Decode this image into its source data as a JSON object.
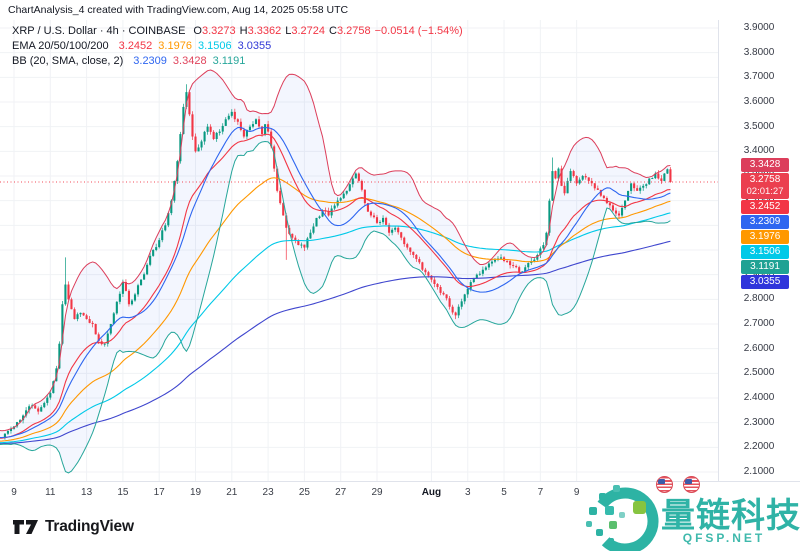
{
  "header": {
    "title": "ChartAnalysis_4 created with TradingView.com, Aug 14, 2025 05:58 UTC"
  },
  "legend": {
    "symbol": "XRP / U.S. Dollar · 4h · COINBASE",
    "ohlc": [
      {
        "k": "O",
        "v": "3.3273"
      },
      {
        "k": "H",
        "v": "3.3362"
      },
      {
        "k": "L",
        "v": "3.2724"
      },
      {
        "k": "C",
        "v": "3.2758"
      }
    ],
    "ohlc_color": "#f23645",
    "change": "−0.0514 (−1.54%)",
    "ema": {
      "label": "EMA 20/50/100/200",
      "values": [
        {
          "v": "3.2452",
          "color": "#f23645"
        },
        {
          "v": "3.1976",
          "color": "#ff9800"
        },
        {
          "v": "3.1506",
          "color": "#00c9e8"
        },
        {
          "v": "3.0355",
          "color": "#3038d6"
        }
      ]
    },
    "bb": {
      "label": "BB (20, SMA, close, 2)",
      "values": [
        {
          "v": "3.2309",
          "color": "#2e66f0"
        },
        {
          "v": "3.3428",
          "color": "#e0445c"
        },
        {
          "v": "3.1191",
          "color": "#26a69a"
        }
      ]
    }
  },
  "y_axis": {
    "labels": [
      "3.9000",
      "3.8000",
      "3.7000",
      "3.6000",
      "3.5000",
      "3.4000",
      "3.3000",
      "3.2000",
      "3.1000",
      "3.0000",
      "2.9000",
      "2.8000",
      "2.7000",
      "2.6000",
      "2.5000",
      "2.4000",
      "2.3000",
      "2.2000",
      "2.1000"
    ]
  },
  "x_axis": {
    "ticks": [
      {
        "label": "9",
        "d": 0
      },
      {
        "label": "11",
        "d": 2
      },
      {
        "label": "13",
        "d": 4
      },
      {
        "label": "15",
        "d": 6
      },
      {
        "label": "17",
        "d": 8
      },
      {
        "label": "19",
        "d": 10
      },
      {
        "label": "21",
        "d": 12
      },
      {
        "label": "23",
        "d": 14
      },
      {
        "label": "25",
        "d": 16
      },
      {
        "label": "27",
        "d": 18
      },
      {
        "label": "29",
        "d": 20
      },
      {
        "label": "Aug",
        "d": 23,
        "bold": true
      },
      {
        "label": "3",
        "d": 25
      },
      {
        "label": "5",
        "d": 27
      },
      {
        "label": "7",
        "d": 29
      },
      {
        "label": "9",
        "d": 31
      }
    ]
  },
  "badges": [
    {
      "name": "bb-upper-badge",
      "label": "3.3428",
      "price": 3.3428,
      "color": "#dc3e5b"
    },
    {
      "name": "last-price-badge",
      "label": "3.2758",
      "price": 3.2758,
      "color": "#eb3f4f",
      "sub": "02:01:27"
    },
    {
      "name": "ema20-badge",
      "label": "3.2452",
      "price": 3.2452,
      "color": "#f23645"
    },
    {
      "name": "bb-basis-badge",
      "label": "3.2309",
      "price": 3.2309,
      "color": "#2e66f0"
    },
    {
      "name": "ema50-badge",
      "label": "3.1976",
      "price": 3.1976,
      "color": "#ff9800"
    },
    {
      "name": "ema100-badge",
      "label": "3.1506",
      "price": 3.1506,
      "color": "#00c9e8"
    },
    {
      "name": "bb-lower-badge",
      "label": "3.1191",
      "price": 3.1191,
      "color": "#1fa294"
    },
    {
      "name": "ema200-badge",
      "label": "3.0355",
      "price": 3.0355,
      "color": "#2f35db"
    }
  ],
  "chart_data": {
    "type": "candlestick",
    "symbol": "XRP/USD",
    "interval": "4h",
    "ylim": [
      2.1,
      3.9
    ],
    "grid": true,
    "last_candle": {
      "open": 3.3273,
      "high": 3.3362,
      "low": 3.2724,
      "close": 3.2758,
      "change": -0.0514,
      "change_pct": -1.54
    },
    "price_line": {
      "price": 3.2758,
      "color": "#f23645",
      "countdown": "02:01:27"
    },
    "candle_colors": {
      "up": "#089981",
      "down": "#f23645"
    },
    "warmup_keypoints": [
      [
        -20,
        2.21
      ],
      [
        -16,
        2.25
      ],
      [
        -12,
        2.22
      ],
      [
        -8,
        2.26
      ],
      [
        -4,
        2.24
      ],
      [
        -1,
        2.275
      ]
    ],
    "close_keypoints": [
      [
        0,
        2.285
      ],
      [
        2,
        2.31
      ],
      [
        4,
        2.35
      ],
      [
        6,
        2.37
      ],
      [
        8,
        2.345
      ],
      [
        10,
        2.38
      ],
      [
        12,
        2.42
      ],
      [
        14,
        2.52
      ],
      [
        15,
        2.62
      ],
      [
        16,
        2.78
      ],
      [
        17,
        2.86
      ],
      [
        18,
        2.8
      ],
      [
        19,
        2.76
      ],
      [
        20,
        2.72
      ],
      [
        22,
        2.745
      ],
      [
        24,
        2.72
      ],
      [
        26,
        2.7
      ],
      [
        28,
        2.63
      ],
      [
        30,
        2.62
      ],
      [
        32,
        2.7
      ],
      [
        34,
        2.79
      ],
      [
        36,
        2.87
      ],
      [
        38,
        2.78
      ],
      [
        40,
        2.82
      ],
      [
        42,
        2.88
      ],
      [
        44,
        2.94
      ],
      [
        46,
        3.0
      ],
      [
        48,
        3.04
      ],
      [
        50,
        3.1
      ],
      [
        52,
        3.2
      ],
      [
        54,
        3.36
      ],
      [
        55,
        3.47
      ],
      [
        56,
        3.58
      ],
      [
        57,
        3.64
      ],
      [
        58,
        3.55
      ],
      [
        59,
        3.46
      ],
      [
        60,
        3.4
      ],
      [
        62,
        3.44
      ],
      [
        64,
        3.5
      ],
      [
        66,
        3.45
      ],
      [
        68,
        3.48
      ],
      [
        70,
        3.53
      ],
      [
        72,
        3.56
      ],
      [
        74,
        3.52
      ],
      [
        76,
        3.46
      ],
      [
        78,
        3.5
      ],
      [
        80,
        3.53
      ],
      [
        82,
        3.47
      ],
      [
        83,
        3.51
      ],
      [
        84,
        3.48
      ],
      [
        85,
        3.42
      ],
      [
        86,
        3.33
      ],
      [
        87,
        3.24
      ],
      [
        88,
        3.19
      ],
      [
        89,
        3.14
      ],
      [
        90,
        3.09
      ],
      [
        92,
        3.05
      ],
      [
        94,
        3.02
      ],
      [
        96,
        3.01
      ],
      [
        98,
        3.07
      ],
      [
        100,
        3.13
      ],
      [
        102,
        3.16
      ],
      [
        104,
        3.14
      ],
      [
        106,
        3.18
      ],
      [
        108,
        3.21
      ],
      [
        110,
        3.24
      ],
      [
        112,
        3.29
      ],
      [
        113,
        3.31
      ],
      [
        114,
        3.28
      ],
      [
        116,
        3.19
      ],
      [
        118,
        3.14
      ],
      [
        120,
        3.11
      ],
      [
        122,
        3.13
      ],
      [
        124,
        3.07
      ],
      [
        126,
        3.09
      ],
      [
        128,
        3.05
      ],
      [
        130,
        3.01
      ],
      [
        132,
        2.98
      ],
      [
        134,
        2.95
      ],
      [
        136,
        2.91
      ],
      [
        138,
        2.88
      ],
      [
        140,
        2.85
      ],
      [
        142,
        2.82
      ],
      [
        144,
        2.77
      ],
      [
        146,
        2.735
      ],
      [
        147,
        2.77
      ],
      [
        149,
        2.82
      ],
      [
        151,
        2.87
      ],
      [
        153,
        2.9
      ],
      [
        155,
        2.92
      ],
      [
        157,
        2.945
      ],
      [
        159,
        2.96
      ],
      [
        161,
        2.97
      ],
      [
        163,
        2.955
      ],
      [
        165,
        2.935
      ],
      [
        167,
        2.91
      ],
      [
        169,
        2.93
      ],
      [
        171,
        2.955
      ],
      [
        173,
        2.98
      ],
      [
        175,
        3.02
      ],
      [
        176,
        3.07
      ],
      [
        177,
        3.2
      ],
      [
        178,
        3.32
      ],
      [
        179,
        3.29
      ],
      [
        180,
        3.33
      ],
      [
        181,
        3.26
      ],
      [
        182,
        3.23
      ],
      [
        183,
        3.28
      ],
      [
        184,
        3.32
      ],
      [
        185,
        3.3
      ],
      [
        186,
        3.27
      ],
      [
        188,
        3.3
      ],
      [
        190,
        3.28
      ],
      [
        192,
        3.25
      ],
      [
        194,
        3.22
      ],
      [
        196,
        3.19
      ],
      [
        198,
        3.16
      ],
      [
        200,
        3.14
      ],
      [
        202,
        3.2
      ],
      [
        204,
        3.27
      ],
      [
        206,
        3.24
      ],
      [
        208,
        3.26
      ],
      [
        210,
        3.29
      ],
      [
        212,
        3.31
      ],
      [
        214,
        3.28
      ],
      [
        215,
        3.31
      ],
      [
        216,
        3.3273
      ],
      [
        217,
        3.2758
      ]
    ],
    "wick_overrides": [
      {
        "i": 17,
        "high": 2.97
      },
      {
        "i": 57,
        "high": 3.672
      },
      {
        "i": 90,
        "low": 2.96
      },
      {
        "i": 146,
        "low": 2.72
      },
      {
        "i": 178,
        "high": 3.375
      },
      {
        "i": 200,
        "low": 3.125
      },
      {
        "i": 217,
        "high": 3.3362,
        "low": 3.2724
      }
    ],
    "indicators": {
      "ema": {
        "periods": [
          20,
          50,
          100,
          200
        ],
        "colors": [
          "#f23645",
          "#ff9800",
          "#00c9e8",
          "#3f46ce"
        ],
        "last": [
          3.2452,
          3.1976,
          3.1506,
          3.0355
        ]
      },
      "bb": {
        "period": 20,
        "mult": 2,
        "basis_color": "#2e66f0",
        "upper_color": "#dc3e5b",
        "lower_color": "#26a69a",
        "fill": "rgba(46,102,240,0.06)",
        "last_basis": 3.2309,
        "last_upper": 3.3428,
        "last_lower": 3.1191
      }
    }
  },
  "attribution": {
    "text": "TradingView"
  },
  "watermark": {
    "brand": "量链科技",
    "site": "QFSP.NET"
  }
}
